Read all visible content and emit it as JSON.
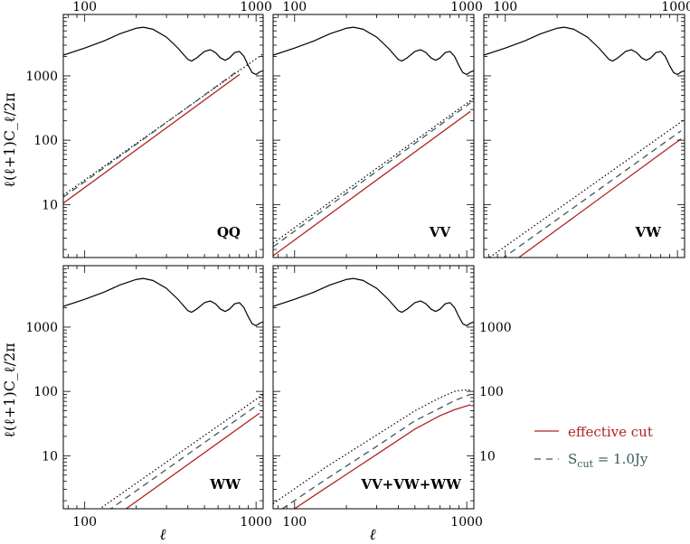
{
  "chart_data": {
    "type": "line",
    "xscale": "log",
    "yscale": "log",
    "xlim": [
      75,
      1100
    ],
    "ylim": [
      1.5,
      9000
    ],
    "x_tick_labels": [
      "100",
      "1000"
    ],
    "y_tick_labels": [
      "10",
      "100",
      "1000"
    ],
    "xlabel": "ℓ",
    "ylabel": "ℓ(ℓ+1)C_ℓ/2π",
    "legend": {
      "placement": "right",
      "entries": [
        {
          "style": "solid",
          "color": "#b22222",
          "label": "effective cut"
        },
        {
          "style": "dashed",
          "color": "#3a5a5a",
          "label_main": "S",
          "label_sub": "cut",
          "label_rest": " = 1.0Jy"
        }
      ]
    },
    "cmb_spectrum": {
      "x": [
        75,
        100,
        130,
        160,
        200,
        220,
        250,
        300,
        350,
        400,
        420,
        450,
        500,
        540,
        580,
        620,
        660,
        700,
        750,
        800,
        850,
        900,
        950,
        1000,
        1050,
        1100
      ],
      "y": [
        2100,
        2700,
        3500,
        4500,
        5500,
        5700,
        5300,
        4000,
        2700,
        1800,
        1700,
        1900,
        2400,
        2550,
        2300,
        1900,
        1750,
        1900,
        2300,
        2400,
        2000,
        1450,
        1120,
        1050,
        1150,
        1200
      ]
    },
    "panels": [
      {
        "label": "QQ",
        "series": [
          {
            "style": "dotted",
            "x": [
              75,
              1100
            ],
            "y": [
              14,
              2200
            ]
          },
          {
            "style": "dashed",
            "x": [
              75,
              800
            ],
            "y": [
              13,
              1250
            ]
          },
          {
            "style": "solid",
            "x": [
              75,
              800
            ],
            "y": [
              10.5,
              1050
            ]
          }
        ]
      },
      {
        "label": "VV",
        "series": [
          {
            "style": "dotted",
            "x": [
              75,
              1100
            ],
            "y": [
              2.5,
              450
            ]
          },
          {
            "style": "dashed",
            "x": [
              75,
              1050
            ],
            "y": [
              2.2,
              380
            ]
          },
          {
            "style": "solid",
            "x": [
              75,
              1050
            ],
            "y": [
              1.6,
              280
            ]
          }
        ]
      },
      {
        "label": "VW",
        "series": [
          {
            "style": "dotted",
            "x": [
              75,
              1100
            ],
            "y": [
              1.3,
              210
            ]
          },
          {
            "style": "dashed",
            "x": [
              75,
              1050
            ],
            "y": [
              0.9,
              140
            ]
          },
          {
            "style": "solid",
            "x": [
              75,
              1050
            ],
            "y": [
              0.6,
              105
            ]
          }
        ]
      },
      {
        "label": "WW",
        "series": [
          {
            "style": "dotted",
            "x": [
              75,
              1100
            ],
            "y": [
              0.6,
              90
            ]
          },
          {
            "style": "dashed",
            "x": [
              75,
              1050
            ],
            "y": [
              0.45,
              65
            ]
          },
          {
            "style": "solid",
            "x": [
              75,
              1050
            ],
            "y": [
              0.3,
              46
            ]
          }
        ]
      },
      {
        "label": "VV+VW+WW",
        "series": [
          {
            "style": "dotted",
            "x": [
              75,
              150,
              300,
              500,
              700,
              850,
              950,
              1050
            ],
            "y": [
              1.8,
              6.5,
              21,
              50,
              80,
              100,
              105,
              105
            ]
          },
          {
            "style": "dashed",
            "x": [
              75,
              150,
              300,
              500,
              700,
              850,
              1050
            ],
            "y": [
              1.2,
              4.2,
              14,
              35,
              55,
              72,
              90
            ]
          },
          {
            "style": "solid",
            "x": [
              75,
              150,
              300,
              500,
              700,
              850,
              1050
            ],
            "y": [
              0.9,
              3.1,
              10.5,
              26,
              42,
              52,
              62
            ]
          }
        ]
      }
    ]
  }
}
